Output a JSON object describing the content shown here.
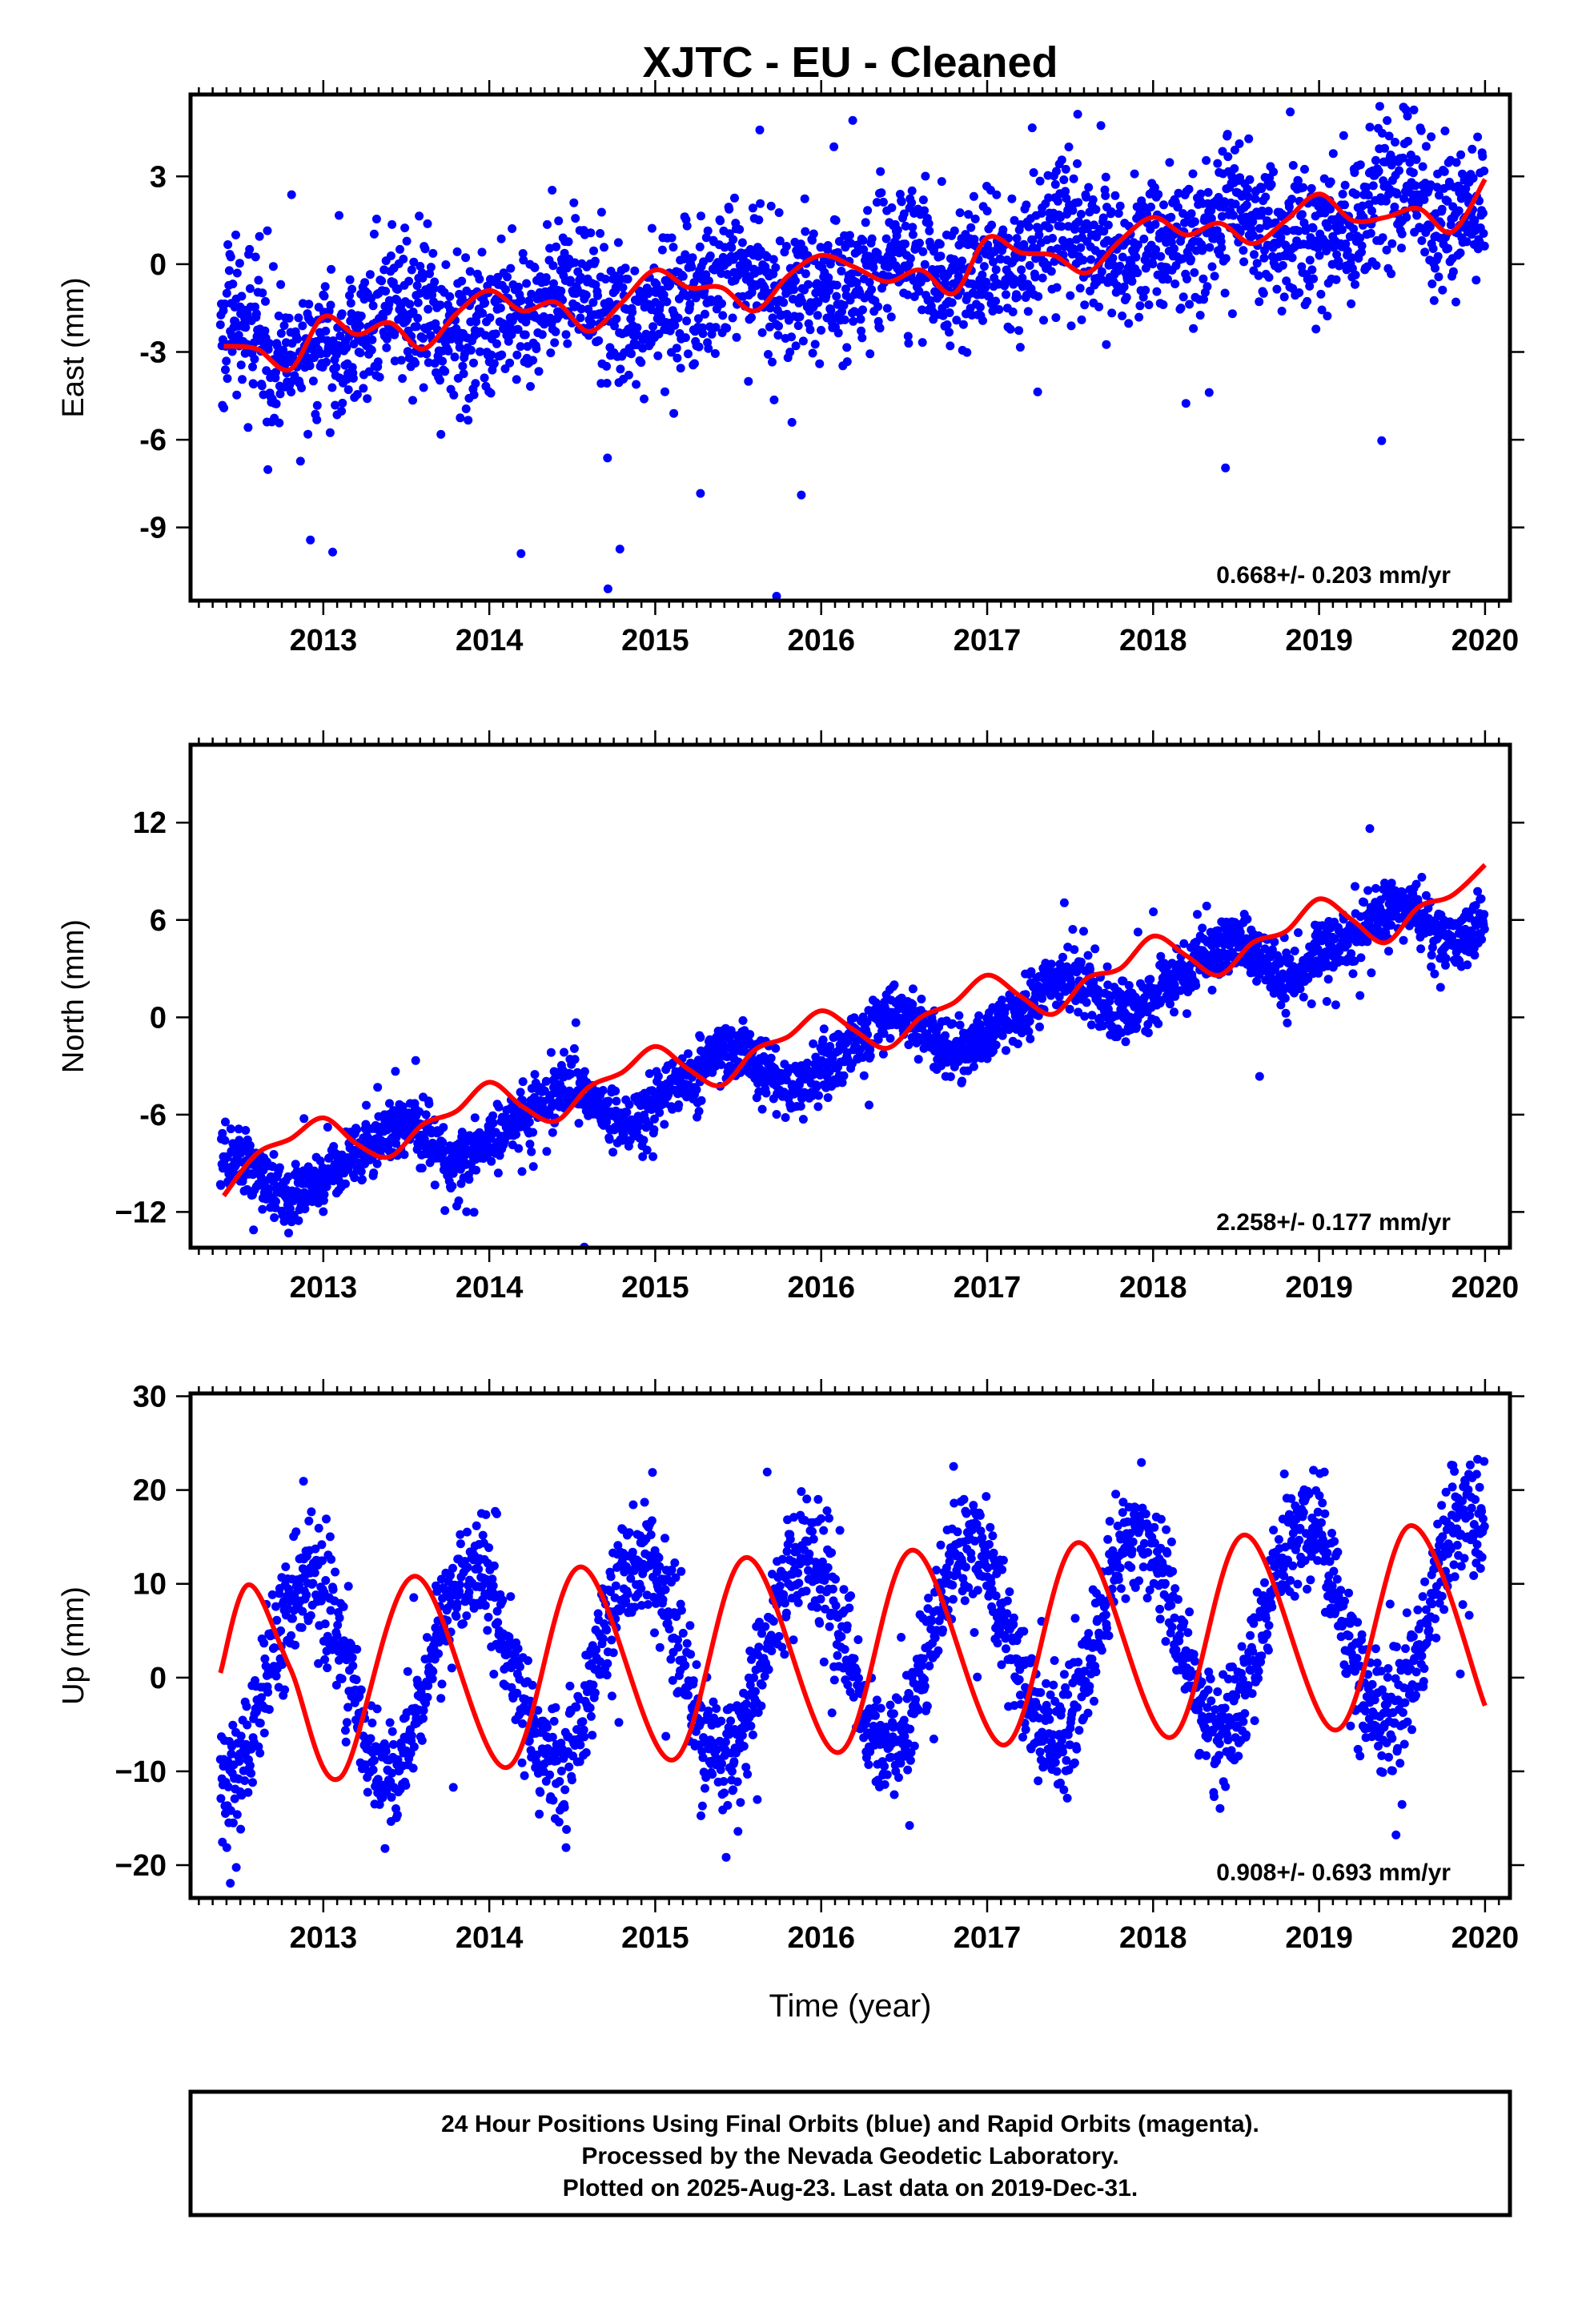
{
  "colors": {
    "points": "#0000ff",
    "model": "#ff0000",
    "frame": "#000000"
  },
  "chart_data": [
    {
      "type": "scatter",
      "title": "XJTC  - EU - Cleaned",
      "ylabel": "East (mm)",
      "xlabel": "",
      "xlim": [
        2012.2,
        2020.15
      ],
      "ylim": [
        -11.5,
        5.8
      ],
      "xticks": [
        2013,
        2014,
        2015,
        2016,
        2017,
        2018,
        2019,
        2020
      ],
      "yticks": [
        -9,
        -6,
        -3,
        0,
        3
      ],
      "ytick_labels": [
        "-9",
        "-6",
        "-3",
        "0",
        "3"
      ],
      "x_range": [
        2012.38,
        2019.997
      ],
      "rate_label": "0.668+/- 0.203 mm/yr",
      "series": [
        {
          "kind": "points",
          "trend": {
            "intercept": -2.9,
            "slope": 0.668,
            "t0": 2012.4
          },
          "annual": {
            "amp": 0.55,
            "phase": 1.3
          },
          "semiannual": {
            "amp": 0.3,
            "phase": 0.5
          },
          "scatter_sd": 1.2
        },
        {
          "kind": "model",
          "x": [
            2012.4,
            2012.6,
            2012.8,
            2013.0,
            2013.2,
            2013.4,
            2013.6,
            2013.8,
            2014.0,
            2014.2,
            2014.4,
            2014.6,
            2014.8,
            2015.0,
            2015.2,
            2015.4,
            2015.6,
            2015.8,
            2016.0,
            2016.2,
            2016.4,
            2016.6,
            2016.8,
            2017.0,
            2017.2,
            2017.4,
            2017.6,
            2017.8,
            2018.0,
            2018.2,
            2018.4,
            2018.6,
            2018.8,
            2019.0,
            2019.2,
            2019.4,
            2019.6,
            2019.8,
            2020.0
          ],
          "y": [
            -2.8,
            -2.9,
            -3.6,
            -1.8,
            -2.4,
            -2.0,
            -2.9,
            -1.7,
            -0.9,
            -1.6,
            -1.3,
            -2.3,
            -1.3,
            -0.2,
            -0.8,
            -0.8,
            -1.6,
            -0.4,
            0.3,
            -0.1,
            -0.6,
            -0.2,
            -1.0,
            0.9,
            0.4,
            0.3,
            -0.3,
            0.8,
            1.6,
            1.0,
            1.4,
            0.7,
            1.5,
            2.4,
            1.5,
            1.6,
            1.9,
            1.1,
            2.9
          ]
        }
      ]
    },
    {
      "type": "scatter",
      "ylabel": "North (mm)",
      "xlabel": "",
      "xlim": [
        2012.2,
        2020.15
      ],
      "ylim": [
        -14.2,
        16.8
      ],
      "xticks": [
        2013,
        2014,
        2015,
        2016,
        2017,
        2018,
        2019,
        2020
      ],
      "yticks": [
        -12,
        -6,
        0,
        6,
        12
      ],
      "ytick_labels": [
        "−12",
        "-6",
        "0",
        "6",
        "12"
      ],
      "x_range": [
        2012.38,
        2019.997
      ],
      "rate_label": "2.258+/- 0.177 mm/yr",
      "series": [
        {
          "kind": "points",
          "trend": {
            "intercept": -10.5,
            "slope": 2.258,
            "t0": 2012.4
          },
          "annual": {
            "amp": 1.4,
            "phase": 1.6
          },
          "semiannual": {
            "amp": 0.4,
            "phase": 0.0
          },
          "scatter_sd": 0.9
        },
        {
          "kind": "model",
          "x": [
            2012.4,
            2012.6,
            2012.8,
            2013.0,
            2013.2,
            2013.4,
            2013.6,
            2013.8,
            2014.0,
            2014.2,
            2014.4,
            2014.6,
            2014.8,
            2015.0,
            2015.2,
            2015.4,
            2015.6,
            2015.8,
            2016.0,
            2016.2,
            2016.4,
            2016.6,
            2016.8,
            2017.0,
            2017.2,
            2017.4,
            2017.6,
            2017.8,
            2018.0,
            2018.2,
            2018.4,
            2018.6,
            2018.8,
            2019.0,
            2019.2,
            2019.4,
            2019.6,
            2019.8,
            2020.0
          ],
          "y": [
            -11.0,
            -8.4,
            -7.5,
            -6.2,
            -7.8,
            -8.6,
            -6.6,
            -5.8,
            -4.0,
            -5.5,
            -6.4,
            -4.3,
            -3.4,
            -1.8,
            -3.2,
            -4.2,
            -2.0,
            -1.2,
            0.4,
            -0.8,
            -1.9,
            0.0,
            0.9,
            2.6,
            1.3,
            0.2,
            2.4,
            3.0,
            5.0,
            3.8,
            2.6,
            4.6,
            5.3,
            7.3,
            6.0,
            4.6,
            6.8,
            7.5,
            9.4
          ]
        }
      ]
    },
    {
      "type": "scatter",
      "ylabel": "Up (mm)",
      "xlabel": "Time (year)",
      "xlim": [
        2012.2,
        2020.15
      ],
      "ylim": [
        -23.5,
        30.3
      ],
      "xticks": [
        2013,
        2014,
        2015,
        2016,
        2017,
        2018,
        2019,
        2020
      ],
      "yticks": [
        -20,
        -10,
        0,
        10,
        20,
        30
      ],
      "ytick_labels": [
        "−20",
        "−10",
        "0",
        "10",
        "20",
        "30"
      ],
      "x_range": [
        2012.38,
        2019.997
      ],
      "rate_label": "0.908+/- 0.693 mm/yr",
      "series": [
        {
          "kind": "points",
          "trend": {
            "intercept": -0.5,
            "slope": 0.908,
            "t0": 2012.4
          },
          "annual": {
            "amp": 10.8,
            "phase": -1.571
          },
          "semiannual": {
            "amp": 0.0,
            "phase": 0.0
          },
          "scatter_sd": 3.1
        },
        {
          "kind": "model",
          "x": [
            2012.38,
            2012.55,
            2012.8,
            2013.1,
            2013.55,
            2014.1,
            2014.55,
            2015.1,
            2015.55,
            2016.1,
            2016.55,
            2017.1,
            2017.55,
            2018.1,
            2018.55,
            2019.1,
            2019.55,
            2020.0
          ],
          "y": [
            0.5,
            9.9,
            1.0,
            -10.7,
            10.8,
            -9.6,
            11.8,
            -8.8,
            12.8,
            -8.0,
            13.6,
            -7.2,
            14.4,
            -6.4,
            15.2,
            -5.6,
            16.2,
            -3.0
          ]
        }
      ]
    }
  ],
  "footer": {
    "line1": "24 Hour Positions Using Final Orbits (blue) and Rapid Orbits (magenta).",
    "line2": "Processed by the Nevada Geodetic Laboratory.",
    "line3": "Plotted on 2025-Aug-23. Last data on 2019-Dec-31."
  }
}
